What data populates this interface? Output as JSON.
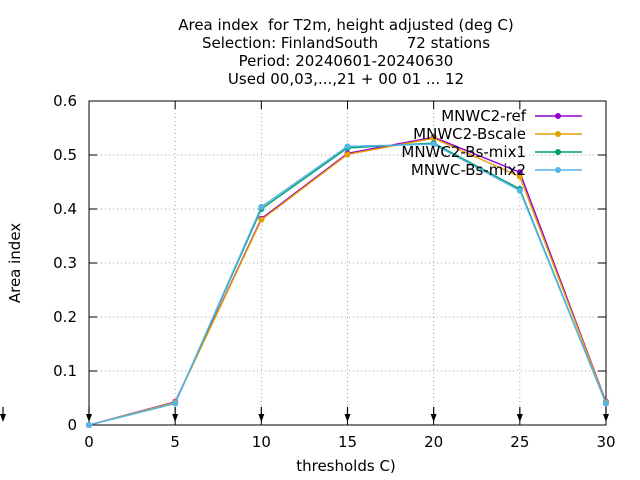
{
  "chart_data": {
    "type": "line",
    "title_lines": [
      "Area index  for T2m, height adjusted (deg C)",
      "Selection: FinlandSouth      72 stations",
      "Period: 20240601-20240630",
      "Used 00,03,...,21 + 00 01 ... 12"
    ],
    "xlabel": "thresholds C)",
    "ylabel": "Area index",
    "xlim": [
      0,
      30
    ],
    "ylim": [
      0,
      0.6
    ],
    "x_ticks": [
      0,
      5,
      10,
      15,
      20,
      25,
      30
    ],
    "x_tick_labels": [
      "0",
      "5",
      "10",
      "15",
      "20",
      "25",
      "30"
    ],
    "y_ticks": [
      0,
      0.1,
      0.2,
      0.3,
      0.4,
      0.5,
      0.6
    ],
    "y_tick_labels": [
      "0",
      "0.1",
      "0.2",
      "0.3",
      "0.4",
      "0.5",
      "0.6"
    ],
    "grid": true,
    "legend_position": "top-right",
    "x": [
      0,
      5,
      10,
      15,
      20,
      25,
      30
    ],
    "series": [
      {
        "name": "MNWC2-ref",
        "color": "#9400d3",
        "values": [
          0,
          0.043,
          0.382,
          0.503,
          0.533,
          0.468,
          0.043
        ]
      },
      {
        "name": "MNWC2-Bscale",
        "color": "#e69f00",
        "values": [
          0,
          0.042,
          0.38,
          0.501,
          0.531,
          0.46,
          0.042
        ]
      },
      {
        "name": "MNWC2-Bs-mix1",
        "color": "#009e73",
        "values": [
          0,
          0.04,
          0.4,
          0.513,
          0.522,
          0.437,
          0.04
        ]
      },
      {
        "name": "MNWC-Bs-mix2",
        "color": "#56b4e9",
        "values": [
          0,
          0.04,
          0.404,
          0.516,
          0.52,
          0.434,
          0.04
        ]
      }
    ]
  }
}
